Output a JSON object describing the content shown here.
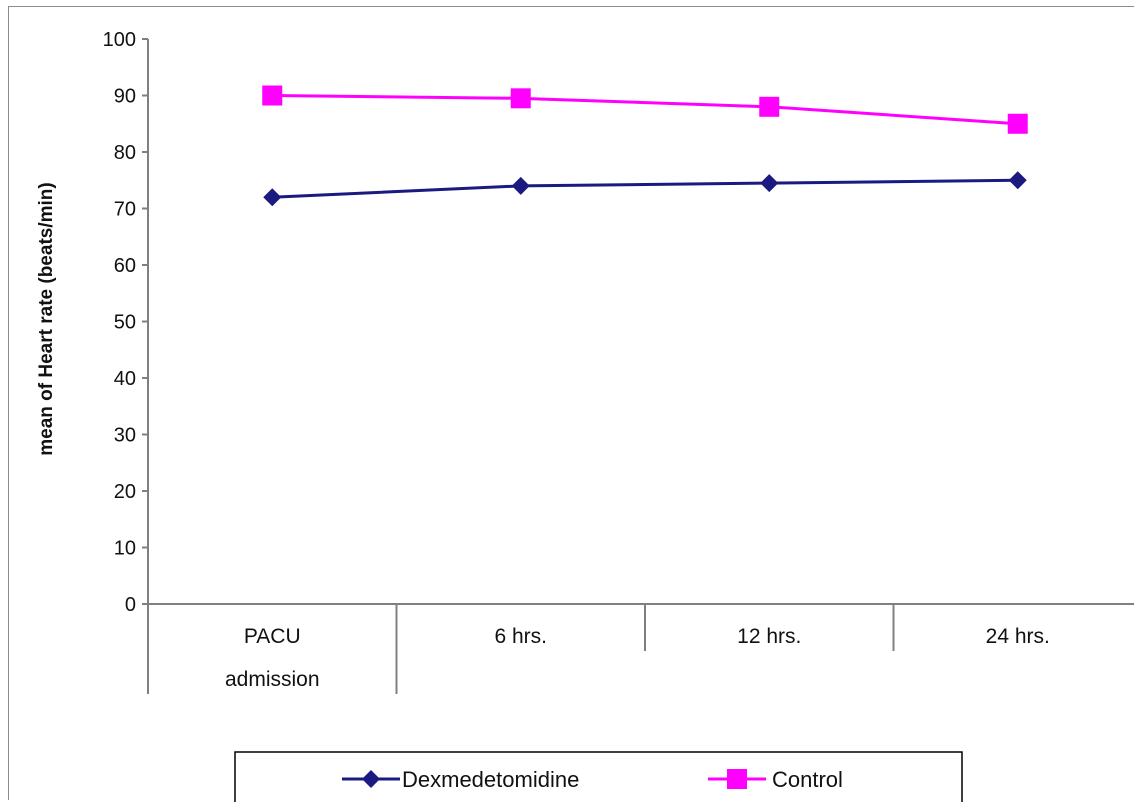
{
  "chart_data": {
    "type": "line",
    "title": "",
    "ylabel": "mean of Heart rate (beats/min)",
    "xlabel": "",
    "ylim": [
      0,
      100
    ],
    "yticks": [
      0,
      10,
      20,
      30,
      40,
      50,
      60,
      70,
      80,
      90,
      100
    ],
    "categories": [
      [
        "PACU",
        "admission"
      ],
      [
        "6 hrs."
      ],
      [
        "12 hrs."
      ],
      [
        "24 hrs."
      ]
    ],
    "series": [
      {
        "name": "Dexmedetomidine",
        "values": [
          72,
          74,
          74.5,
          75
        ],
        "color": "#1a1a80",
        "marker": "diamond"
      },
      {
        "name": "Control",
        "values": [
          90,
          89.5,
          88,
          85
        ],
        "color": "#ff00ff",
        "marker": "square"
      }
    ],
    "grid": false,
    "legend": "bottom"
  }
}
